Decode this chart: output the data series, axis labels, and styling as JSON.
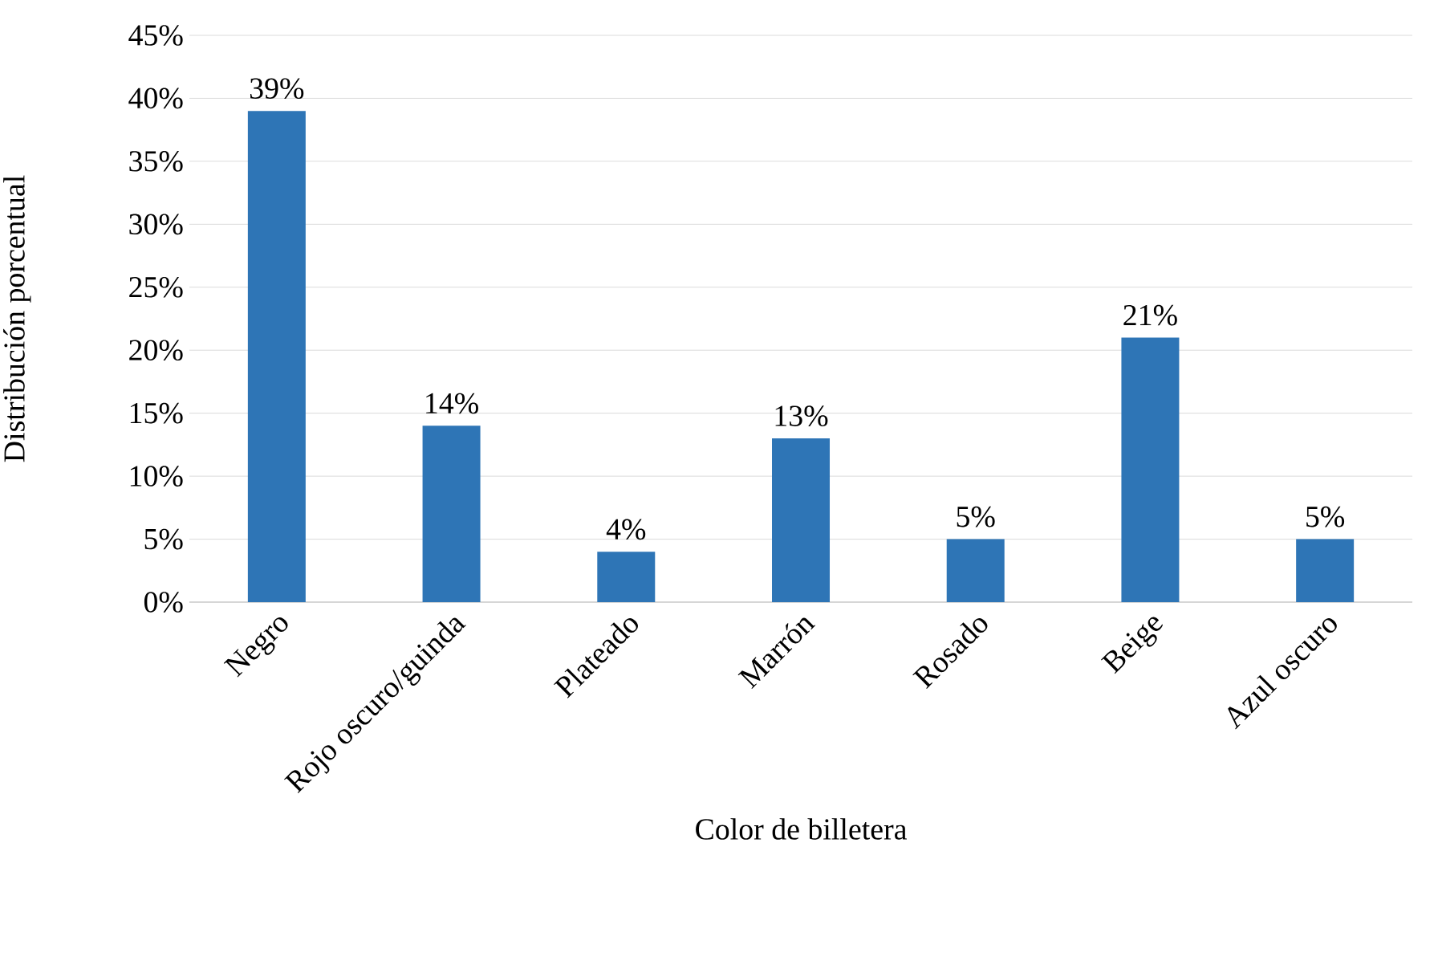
{
  "chart_data": {
    "type": "bar",
    "xlabel": "Color de billetera",
    "ylabel": "Distribución porcentual",
    "categories": [
      "Negro",
      "Rojo oscuro/guinda",
      "Plateado",
      "Marrón",
      "Rosado",
      "Beige",
      "Azul oscuro"
    ],
    "values": [
      39,
      14,
      4,
      13,
      5,
      21,
      5
    ],
    "color": "#2e75b6",
    "value_labels": [
      "39%",
      "14%",
      "4%",
      "13%",
      "5%",
      "21%",
      "5%"
    ],
    "ylim": [
      0,
      45
    ],
    "yticks": [
      {
        "value": 0,
        "label": "0%"
      },
      {
        "value": 5,
        "label": "5%"
      },
      {
        "value": 10,
        "label": "10%"
      },
      {
        "value": 15,
        "label": "15%"
      },
      {
        "value": 20,
        "label": "20%"
      },
      {
        "value": 25,
        "label": "25%"
      },
      {
        "value": 30,
        "label": "30%"
      },
      {
        "value": 35,
        "label": "35%"
      },
      {
        "value": 40,
        "label": "40%"
      },
      {
        "value": 45,
        "label": "45%"
      }
    ],
    "grid": "y"
  }
}
